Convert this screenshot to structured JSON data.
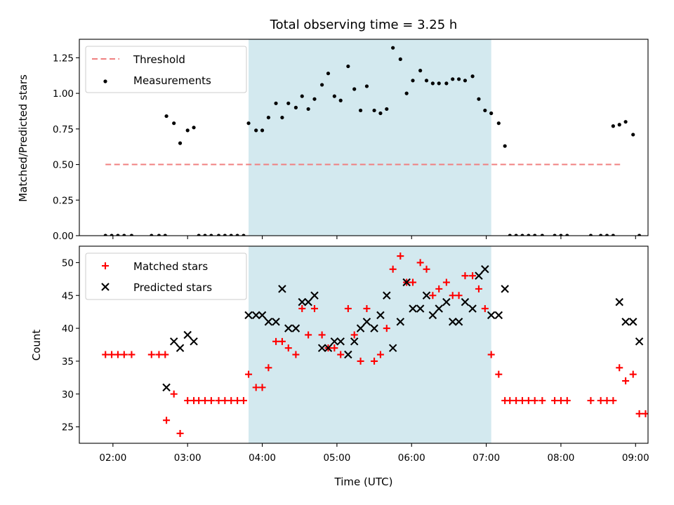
{
  "chart_data": [
    {
      "type": "scatter",
      "title": "Total observing time = 3.25 h",
      "xlabel": "",
      "ylabel": "Matched/Predicted stars",
      "ylim": [
        0,
        1.38
      ],
      "yticks": [
        "0.00",
        "0.25",
        "0.50",
        "0.75",
        "1.00",
        "1.25"
      ],
      "ytick_values": [
        0,
        0.25,
        0.5,
        0.75,
        1.0,
        1.25
      ],
      "xlim": [
        "01:33",
        "09:10"
      ],
      "shaded_range": [
        "03:49",
        "07:04"
      ],
      "shade_color": "#d3e9ef",
      "legend": {
        "placement": "top-left",
        "entries": [
          "Threshold",
          "Measurements"
        ]
      },
      "series": [
        {
          "name": "Threshold",
          "style": "dashed-line",
          "color": "#f08080",
          "points": [
            [
              "01:54",
              0.5
            ],
            [
              "08:50",
              0.5
            ]
          ]
        },
        {
          "name": "Measurements",
          "style": "dot",
          "color": "#000000",
          "points": [
            [
              "01:54",
              0.0
            ],
            [
              "01:59",
              0.0
            ],
            [
              "02:04",
              0.0
            ],
            [
              "02:09",
              0.0
            ],
            [
              "02:15",
              0.0
            ],
            [
              "02:31",
              0.0
            ],
            [
              "02:37",
              0.0
            ],
            [
              "02:42",
              0.0
            ],
            [
              "02:43",
              0.84
            ],
            [
              "02:49",
              0.79
            ],
            [
              "02:54",
              0.65
            ],
            [
              "03:00",
              0.74
            ],
            [
              "03:05",
              0.76
            ],
            [
              "03:09",
              0.0
            ],
            [
              "03:14",
              0.0
            ],
            [
              "03:19",
              0.0
            ],
            [
              "03:25",
              0.0
            ],
            [
              "03:30",
              0.0
            ],
            [
              "03:35",
              0.0
            ],
            [
              "03:40",
              0.0
            ],
            [
              "03:45",
              0.0
            ],
            [
              "03:49",
              0.79
            ],
            [
              "03:55",
              0.74
            ],
            [
              "04:00",
              0.74
            ],
            [
              "04:05",
              0.83
            ],
            [
              "04:11",
              0.93
            ],
            [
              "04:16",
              0.83
            ],
            [
              "04:21",
              0.93
            ],
            [
              "04:27",
              0.9
            ],
            [
              "04:32",
              0.98
            ],
            [
              "04:37",
              0.89
            ],
            [
              "04:42",
              0.96
            ],
            [
              "04:48",
              1.06
            ],
            [
              "04:53",
              1.14
            ],
            [
              "04:58",
              0.98
            ],
            [
              "05:03",
              0.95
            ],
            [
              "05:09",
              1.19
            ],
            [
              "05:14",
              1.03
            ],
            [
              "05:19",
              0.88
            ],
            [
              "05:24",
              1.05
            ],
            [
              "05:30",
              0.88
            ],
            [
              "05:35",
              0.86
            ],
            [
              "05:40",
              0.89
            ],
            [
              "05:45",
              1.32
            ],
            [
              "05:51",
              1.24
            ],
            [
              "05:56",
              1.0
            ],
            [
              "06:01",
              1.09
            ],
            [
              "06:07",
              1.16
            ],
            [
              "06:12",
              1.09
            ],
            [
              "06:17",
              1.07
            ],
            [
              "06:22",
              1.07
            ],
            [
              "06:28",
              1.07
            ],
            [
              "06:33",
              1.1
            ],
            [
              "06:38",
              1.1
            ],
            [
              "06:43",
              1.09
            ],
            [
              "06:49",
              1.12
            ],
            [
              "06:54",
              0.96
            ],
            [
              "06:59",
              0.88
            ],
            [
              "07:04",
              0.86
            ],
            [
              "07:10",
              0.79
            ],
            [
              "07:15",
              0.63
            ],
            [
              "07:19",
              0.0
            ],
            [
              "07:24",
              0.0
            ],
            [
              "07:29",
              0.0
            ],
            [
              "07:34",
              0.0
            ],
            [
              "07:39",
              0.0
            ],
            [
              "07:45",
              0.0
            ],
            [
              "07:55",
              0.0
            ],
            [
              "08:00",
              0.0
            ],
            [
              "08:05",
              0.0
            ],
            [
              "08:24",
              0.0
            ],
            [
              "08:32",
              0.0
            ],
            [
              "08:37",
              0.0
            ],
            [
              "08:42",
              0.0
            ],
            [
              "08:42",
              0.77
            ],
            [
              "08:47",
              0.78
            ],
            [
              "08:52",
              0.8
            ],
            [
              "08:58",
              0.71
            ],
            [
              "09:03",
              0.0
            ]
          ]
        }
      ]
    },
    {
      "type": "scatter",
      "title": "",
      "xlabel": "Time (UTC)",
      "ylabel": "Count",
      "ylim": [
        22.5,
        52.5
      ],
      "yticks": [
        "25",
        "30",
        "35",
        "40",
        "45",
        "50"
      ],
      "ytick_values": [
        25,
        30,
        35,
        40,
        45,
        50
      ],
      "xlim": [
        "01:33",
        "09:10"
      ],
      "xticks": [
        "02:00",
        "03:00",
        "04:00",
        "05:00",
        "06:00",
        "07:00",
        "08:00",
        "09:00"
      ],
      "shaded_range": [
        "03:49",
        "07:04"
      ],
      "shade_color": "#d3e9ef",
      "legend": {
        "placement": "top-left",
        "entries": [
          "Matched stars",
          "Predicted stars"
        ]
      },
      "series": [
        {
          "name": "Matched stars",
          "style": "plus",
          "color": "#ff0000",
          "points": [
            [
              "01:54",
              36
            ],
            [
              "01:59",
              36
            ],
            [
              "02:04",
              36
            ],
            [
              "02:09",
              36
            ],
            [
              "02:15",
              36
            ],
            [
              "02:31",
              36
            ],
            [
              "02:37",
              36
            ],
            [
              "02:42",
              36
            ],
            [
              "02:43",
              26
            ],
            [
              "02:49",
              30
            ],
            [
              "02:54",
              24
            ],
            [
              "03:00",
              29
            ],
            [
              "03:05",
              29
            ],
            [
              "03:09",
              29
            ],
            [
              "03:14",
              29
            ],
            [
              "03:19",
              29
            ],
            [
              "03:25",
              29
            ],
            [
              "03:30",
              29
            ],
            [
              "03:35",
              29
            ],
            [
              "03:40",
              29
            ],
            [
              "03:45",
              29
            ],
            [
              "03:49",
              33
            ],
            [
              "03:55",
              31
            ],
            [
              "04:00",
              31
            ],
            [
              "04:05",
              34
            ],
            [
              "04:11",
              38
            ],
            [
              "04:16",
              38
            ],
            [
              "04:21",
              37
            ],
            [
              "04:27",
              36
            ],
            [
              "04:32",
              43
            ],
            [
              "04:37",
              39
            ],
            [
              "04:42",
              43
            ],
            [
              "04:48",
              39
            ],
            [
              "04:53",
              37
            ],
            [
              "04:58",
              37
            ],
            [
              "05:03",
              36
            ],
            [
              "05:09",
              43
            ],
            [
              "05:14",
              39
            ],
            [
              "05:19",
              35
            ],
            [
              "05:24",
              43
            ],
            [
              "05:30",
              35
            ],
            [
              "05:35",
              36
            ],
            [
              "05:40",
              40
            ],
            [
              "05:45",
              49
            ],
            [
              "05:51",
              51
            ],
            [
              "05:56",
              47
            ],
            [
              "06:01",
              47
            ],
            [
              "06:07",
              50
            ],
            [
              "06:12",
              49
            ],
            [
              "06:17",
              45
            ],
            [
              "06:22",
              46
            ],
            [
              "06:28",
              47
            ],
            [
              "06:33",
              45
            ],
            [
              "06:38",
              45
            ],
            [
              "06:43",
              48
            ],
            [
              "06:49",
              48
            ],
            [
              "06:54",
              46
            ],
            [
              "06:59",
              43
            ],
            [
              "07:04",
              36
            ],
            [
              "07:10",
              33
            ],
            [
              "07:15",
              29
            ],
            [
              "07:19",
              29
            ],
            [
              "07:24",
              29
            ],
            [
              "07:29",
              29
            ],
            [
              "07:34",
              29
            ],
            [
              "07:39",
              29
            ],
            [
              "07:45",
              29
            ],
            [
              "07:55",
              29
            ],
            [
              "08:00",
              29
            ],
            [
              "08:05",
              29
            ],
            [
              "08:24",
              29
            ],
            [
              "08:32",
              29
            ],
            [
              "08:37",
              29
            ],
            [
              "08:42",
              29
            ],
            [
              "08:47",
              34
            ],
            [
              "08:52",
              32
            ],
            [
              "08:58",
              33
            ],
            [
              "09:03",
              27
            ],
            [
              "09:08",
              27
            ]
          ]
        },
        {
          "name": "Predicted stars",
          "style": "x",
          "color": "#000000",
          "points": [
            [
              "02:43",
              31
            ],
            [
              "02:49",
              38
            ],
            [
              "02:54",
              37
            ],
            [
              "03:00",
              39
            ],
            [
              "03:05",
              38
            ],
            [
              "03:49",
              42
            ],
            [
              "03:55",
              42
            ],
            [
              "04:00",
              42
            ],
            [
              "04:05",
              41
            ],
            [
              "04:11",
              41
            ],
            [
              "04:16",
              46
            ],
            [
              "04:21",
              40
            ],
            [
              "04:27",
              40
            ],
            [
              "04:32",
              44
            ],
            [
              "04:37",
              44
            ],
            [
              "04:42",
              45
            ],
            [
              "04:48",
              37
            ],
            [
              "04:53",
              37
            ],
            [
              "04:58",
              38
            ],
            [
              "05:03",
              38
            ],
            [
              "05:09",
              36
            ],
            [
              "05:14",
              38
            ],
            [
              "05:19",
              40
            ],
            [
              "05:24",
              41
            ],
            [
              "05:30",
              40
            ],
            [
              "05:35",
              42
            ],
            [
              "05:40",
              45
            ],
            [
              "05:45",
              37
            ],
            [
              "05:51",
              41
            ],
            [
              "05:56",
              47
            ],
            [
              "06:01",
              43
            ],
            [
              "06:07",
              43
            ],
            [
              "06:12",
              45
            ],
            [
              "06:17",
              42
            ],
            [
              "06:22",
              43
            ],
            [
              "06:28",
              44
            ],
            [
              "06:33",
              41
            ],
            [
              "06:38",
              41
            ],
            [
              "06:43",
              44
            ],
            [
              "06:49",
              43
            ],
            [
              "06:54",
              48
            ],
            [
              "06:59",
              49
            ],
            [
              "07:04",
              42
            ],
            [
              "07:10",
              42
            ],
            [
              "07:15",
              46
            ],
            [
              "08:47",
              44
            ],
            [
              "08:52",
              41
            ],
            [
              "08:58",
              41
            ],
            [
              "09:03",
              38
            ]
          ]
        }
      ]
    }
  ]
}
